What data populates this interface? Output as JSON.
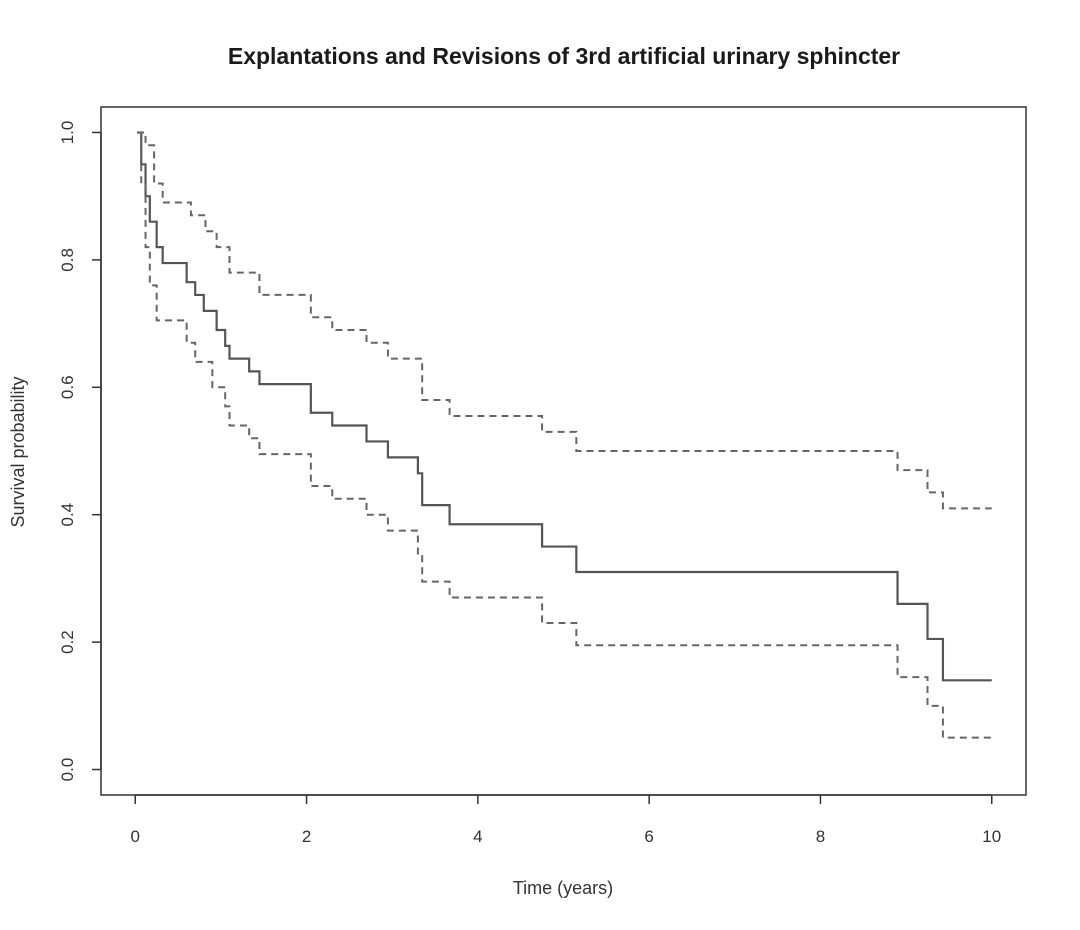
{
  "chart_data": {
    "type": "line",
    "title": "Explantations and Revisions of 3rd artificial urinary sphincter",
    "xlabel": "Time (years)",
    "ylabel": "Survival probability",
    "xlim": [
      -0.4,
      10.4
    ],
    "ylim": [
      -0.04,
      1.04
    ],
    "x_ticks": [
      0,
      2,
      4,
      6,
      8,
      10
    ],
    "y_ticks": [
      0.0,
      0.2,
      0.4,
      0.6,
      0.8,
      1.0
    ],
    "x_tick_labels": [
      "0",
      "2",
      "4",
      "6",
      "8",
      "10"
    ],
    "y_tick_labels": [
      "0.0",
      "0.2",
      "0.4",
      "0.6",
      "0.8",
      "1.0"
    ],
    "grid": false,
    "series": [
      {
        "style": "solid",
        "steps": [
          [
            0.02,
            1.0
          ],
          [
            0.07,
            0.95
          ],
          [
            0.12,
            0.9
          ],
          [
            0.17,
            0.86
          ],
          [
            0.25,
            0.82
          ],
          [
            0.32,
            0.795
          ],
          [
            0.6,
            0.765
          ],
          [
            0.7,
            0.745
          ],
          [
            0.8,
            0.72
          ],
          [
            0.95,
            0.69
          ],
          [
            1.05,
            0.665
          ],
          [
            1.1,
            0.645
          ],
          [
            1.33,
            0.625
          ],
          [
            1.45,
            0.605
          ],
          [
            2.05,
            0.56
          ],
          [
            2.3,
            0.54
          ],
          [
            2.7,
            0.515
          ],
          [
            2.95,
            0.49
          ],
          [
            3.3,
            0.465
          ],
          [
            3.35,
            0.415
          ],
          [
            3.67,
            0.385
          ],
          [
            4.75,
            0.35
          ],
          [
            5.15,
            0.31
          ],
          [
            8.9,
            0.26
          ],
          [
            9.25,
            0.205
          ],
          [
            9.43,
            0.14
          ],
          [
            10.0,
            0.14
          ]
        ]
      },
      {
        "style": "dashed",
        "steps": [
          [
            0.02,
            1.0
          ],
          [
            0.12,
            0.98
          ],
          [
            0.22,
            0.92
          ],
          [
            0.32,
            0.89
          ],
          [
            0.65,
            0.87
          ],
          [
            0.82,
            0.845
          ],
          [
            0.95,
            0.82
          ],
          [
            1.1,
            0.78
          ],
          [
            1.45,
            0.745
          ],
          [
            2.05,
            0.71
          ],
          [
            2.3,
            0.69
          ],
          [
            2.7,
            0.67
          ],
          [
            2.95,
            0.645
          ],
          [
            3.35,
            0.58
          ],
          [
            3.67,
            0.555
          ],
          [
            4.75,
            0.53
          ],
          [
            5.15,
            0.5
          ],
          [
            8.9,
            0.47
          ],
          [
            9.25,
            0.435
          ],
          [
            9.43,
            0.41
          ],
          [
            10.0,
            0.41
          ]
        ]
      },
      {
        "style": "dashed",
        "steps": [
          [
            0.02,
            1.0
          ],
          [
            0.07,
            0.92
          ],
          [
            0.12,
            0.82
          ],
          [
            0.17,
            0.76
          ],
          [
            0.25,
            0.705
          ],
          [
            0.6,
            0.67
          ],
          [
            0.7,
            0.64
          ],
          [
            0.9,
            0.6
          ],
          [
            1.05,
            0.57
          ],
          [
            1.1,
            0.54
          ],
          [
            1.33,
            0.52
          ],
          [
            1.45,
            0.495
          ],
          [
            2.05,
            0.445
          ],
          [
            2.3,
            0.425
          ],
          [
            2.7,
            0.4
          ],
          [
            2.95,
            0.375
          ],
          [
            3.3,
            0.335
          ],
          [
            3.35,
            0.295
          ],
          [
            3.67,
            0.27
          ],
          [
            4.75,
            0.23
          ],
          [
            5.15,
            0.195
          ],
          [
            8.9,
            0.145
          ],
          [
            9.25,
            0.1
          ],
          [
            9.43,
            0.05
          ],
          [
            10.0,
            0.05
          ]
        ]
      }
    ]
  }
}
